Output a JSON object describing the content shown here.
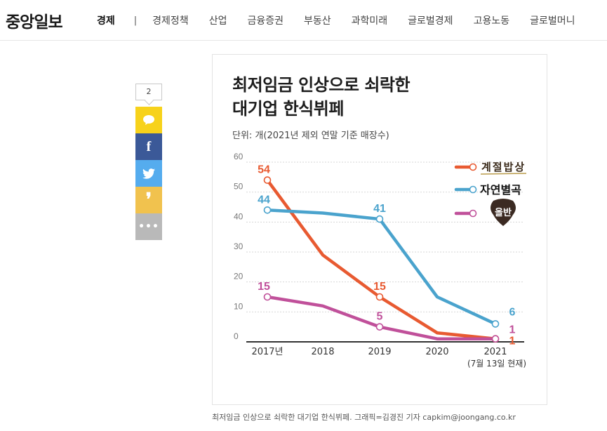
{
  "header": {
    "logo": "중앙일보",
    "section": "경제",
    "separator": "|",
    "nav": [
      "경제정책",
      "산업",
      "금융증권",
      "부동산",
      "과학미래",
      "글로벌경제",
      "고용노동",
      "글로벌머니"
    ]
  },
  "share": {
    "comment_count": "2",
    "buttons": [
      {
        "name": "kakao",
        "icon": "kakao-bubble-icon",
        "color": "#f7d21b"
      },
      {
        "name": "facebook",
        "icon": "facebook-icon",
        "glyph": "f",
        "color": "#3b5998"
      },
      {
        "name": "twitter",
        "icon": "twitter-bird-icon",
        "color": "#55acee"
      },
      {
        "name": "quote",
        "icon": "quote-icon",
        "glyph": "❜",
        "color": "#f1c24e"
      },
      {
        "name": "more",
        "icon": "more-dots-icon",
        "glyph": "•••",
        "color": "#b9b9b9"
      }
    ]
  },
  "chart_data": {
    "type": "line",
    "title": "최저임금 인상으로 쇠락한\n대기업 한식뷔페",
    "title_line1": "최저임금 인상으로 쇠락한",
    "title_line2": "대기업 한식뷔페",
    "unit": "단위: 개(2021년 제외 연말 기준 매장수)",
    "categories": [
      "2017년",
      "2018",
      "2019",
      "2020",
      "2021"
    ],
    "x_sublabel": "(7월 13일 현재)",
    "y_ticks": [
      0,
      10,
      20,
      30,
      40,
      50,
      60
    ],
    "ylim": [
      0,
      60
    ],
    "grid": true,
    "legend_position": "top-right",
    "series": [
      {
        "name": "계절밥상",
        "color": "#e85a31",
        "values": [
          54,
          29,
          15,
          3,
          1
        ],
        "labels": [
          "54",
          null,
          "15",
          null,
          "1"
        ]
      },
      {
        "name": "자연별곡",
        "color": "#4aa3cd",
        "values": [
          44,
          43,
          41,
          15,
          6
        ],
        "labels": [
          "44",
          null,
          "41",
          null,
          "6"
        ]
      },
      {
        "name": "올반",
        "color": "#c0509a",
        "values": [
          15,
          12,
          5,
          1,
          1
        ],
        "labels": [
          "15",
          null,
          "5",
          null,
          "1"
        ]
      }
    ]
  },
  "caption": "최저임금 인상으로 쇠락한 대기업 한식뷔페. 그래픽=김경진 기자 capkim@joongang.co.kr"
}
